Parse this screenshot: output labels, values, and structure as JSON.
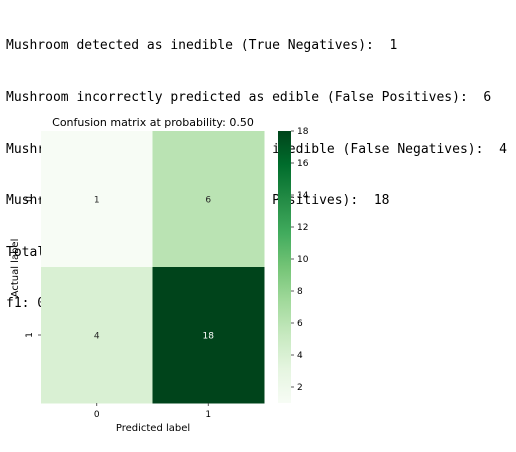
{
  "output": {
    "lines": [
      "Mushroom detected as inedible (True Negatives):  1",
      "Mushroom incorrectly predicted as edible (False Positives):  6",
      "Mushroom incorrectly predicted as inedible (False Negatives):  4",
      "Mushroom detected as edible (True Positives):  18",
      "Total edible mushrooms:  22",
      "f1: 0.783"
    ]
  },
  "chart_data": {
    "type": "heatmap",
    "title": "Confusion matrix at probability: 0.50",
    "xlabel": "Predicted label",
    "ylabel": "Actual label",
    "x_categories": [
      "0",
      "1"
    ],
    "y_categories": [
      "0",
      "1"
    ],
    "matrix": [
      [
        1,
        6
      ],
      [
        4,
        18
      ]
    ],
    "colormap": "Greens",
    "colorbar": {
      "range": [
        1,
        18
      ],
      "ticks": [
        2,
        4,
        6,
        8,
        10,
        12,
        14,
        16,
        18
      ]
    },
    "colors": {
      "low": "#f7fcf5",
      "high": "#00441b"
    }
  }
}
